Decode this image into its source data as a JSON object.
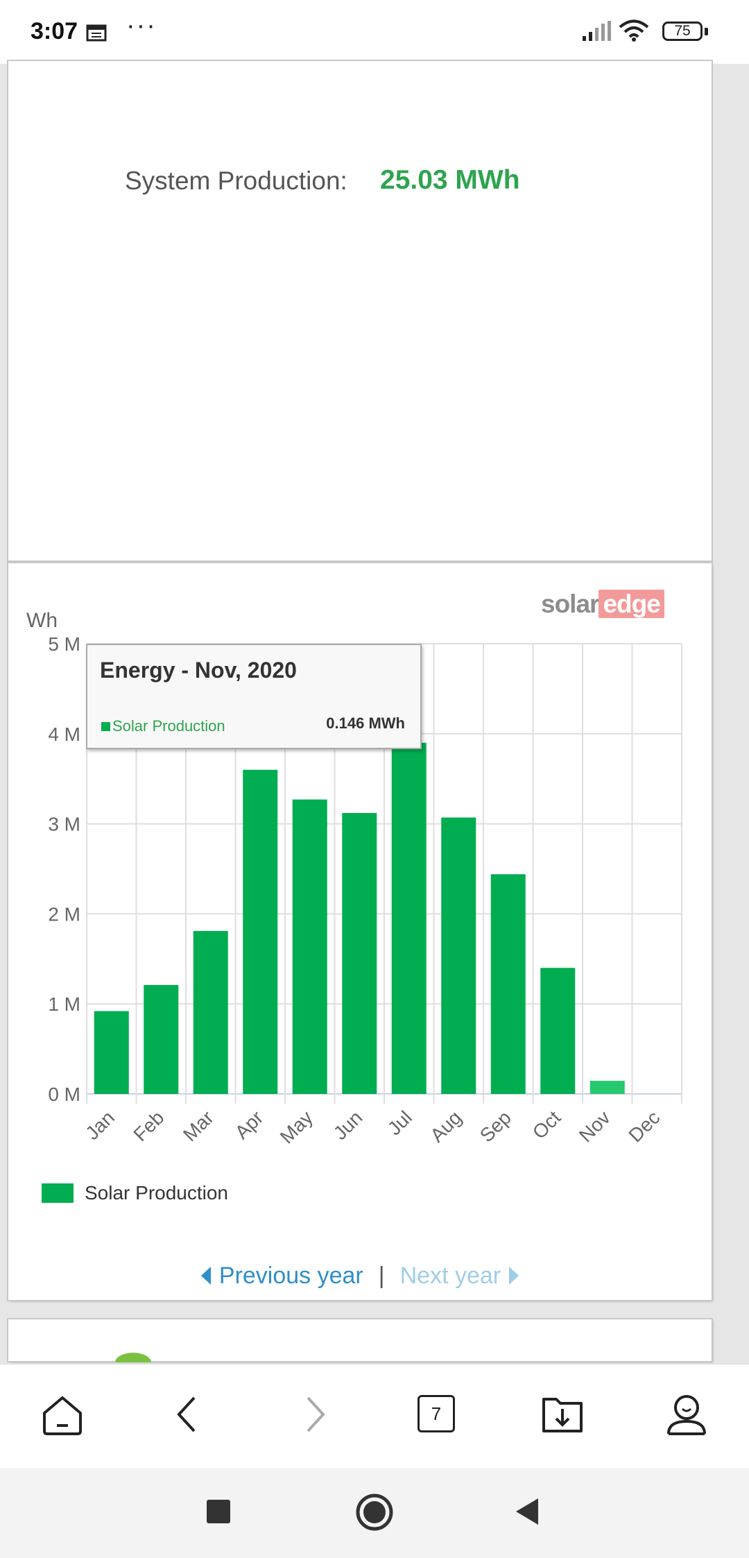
{
  "status_bar": {
    "time": "3:07",
    "dots": "···",
    "battery": "75"
  },
  "production": {
    "label": "System Production:",
    "value": "25.03 MWh"
  },
  "brand": {
    "part1": "solar",
    "part2": "edge"
  },
  "tooltip": {
    "title": "Energy - Nov, 2020",
    "series": "Solar Production",
    "value": "0.146 MWh"
  },
  "pager": {
    "prev": "Previous year",
    "separator": "|",
    "next": "Next year"
  },
  "browser_bar": {
    "tab_count": "7"
  },
  "colors": {
    "bar": "#00ad50",
    "highlight_bar": "#26c96d",
    "accent_green": "#2ea44f",
    "link_blue": "#2f8fc9"
  },
  "chart_data": {
    "type": "bar",
    "ylabel": "Wh",
    "categories": [
      "Jan",
      "Feb",
      "Mar",
      "Apr",
      "May",
      "Jun",
      "Jul",
      "Aug",
      "Sep",
      "Oct",
      "Nov",
      "Dec"
    ],
    "series": [
      {
        "name": "Solar Production",
        "values": [
          0.92,
          1.21,
          1.81,
          3.6,
          3.27,
          3.12,
          3.9,
          3.07,
          2.44,
          1.4,
          0.146,
          0
        ]
      }
    ],
    "value_unit": "MWh",
    "ylim": [
      0,
      5
    ],
    "yticks": [
      "0 M",
      "1 M",
      "2 M",
      "3 M",
      "4 M",
      "5 M"
    ],
    "highlighted_category": "Nov",
    "grid": true,
    "legend": "bottom-left"
  }
}
